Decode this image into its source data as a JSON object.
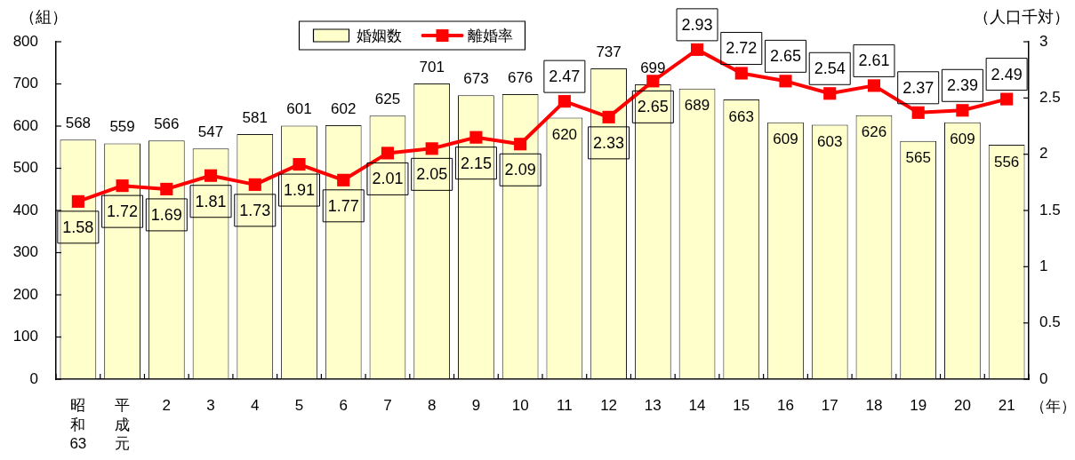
{
  "chart_data": {
    "type": "bar",
    "categories": [
      "昭和63",
      "平成元",
      "2",
      "3",
      "4",
      "5",
      "6",
      "7",
      "8",
      "9",
      "10",
      "11",
      "12",
      "13",
      "14",
      "15",
      "16",
      "17",
      "18",
      "19",
      "20",
      "21"
    ],
    "xlabel": "（年）",
    "ylabel": "（組）",
    "y2label": "（人口千対）",
    "series": [
      {
        "name": "婚姻数",
        "type": "bar",
        "color": "#ffffcc",
        "values": [
          568,
          559,
          566,
          547,
          581,
          601,
          602,
          625,
          701,
          673,
          676,
          620,
          737,
          699,
          689,
          663,
          609,
          603,
          626,
          565,
          609,
          556
        ]
      },
      {
        "name": "離婚率",
        "type": "line",
        "axis": "y2",
        "color": "#ff0000",
        "values": [
          1.58,
          1.72,
          1.69,
          1.81,
          1.73,
          1.91,
          1.77,
          2.01,
          2.05,
          2.15,
          2.09,
          2.47,
          2.33,
          2.65,
          2.93,
          2.72,
          2.65,
          2.54,
          2.61,
          2.37,
          2.39,
          2.49
        ]
      }
    ],
    "ylim": [
      0,
      800
    ],
    "yticks": [
      0,
      100,
      200,
      300,
      400,
      500,
      600,
      700,
      800
    ],
    "y2lim": [
      0,
      3
    ],
    "y2ticks": [
      0,
      0.5,
      1,
      1.5,
      2,
      2.5,
      3
    ],
    "legend": "top",
    "marker": "square",
    "data_labels": true
  }
}
